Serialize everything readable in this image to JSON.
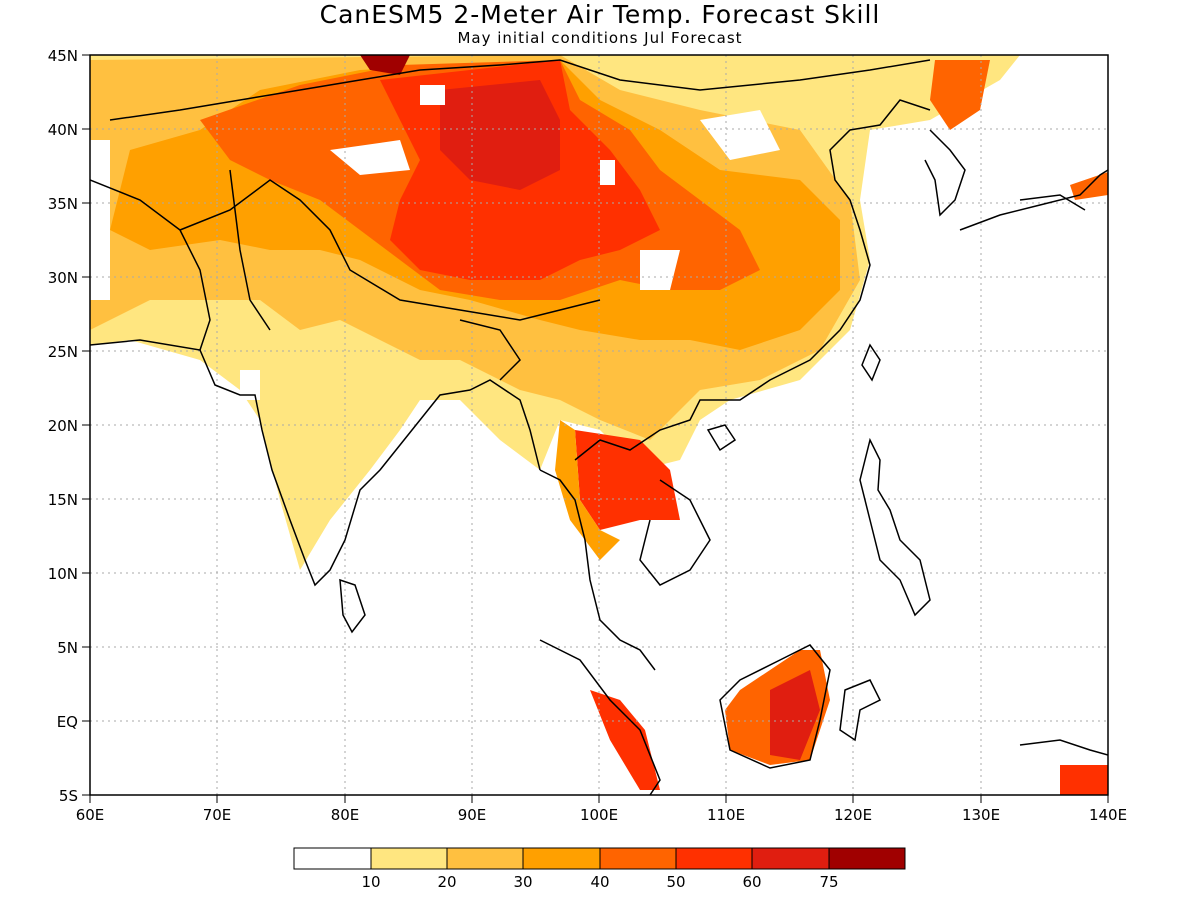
{
  "title": "CanESM5 2-Meter Air Temp. Forecast Skill",
  "subtitle": "May initial conditions  Jul Forecast",
  "map": {
    "region": "South and East Asia",
    "lon_range": [
      60,
      140
    ],
    "lat_range": [
      -5,
      45
    ],
    "lon_ticks": [
      "60E",
      "70E",
      "80E",
      "90E",
      "100E",
      "110E",
      "120E",
      "130E",
      "140E"
    ],
    "lat_ticks": [
      "45N",
      "40N",
      "35N",
      "30N",
      "25N",
      "20N",
      "15N",
      "10N",
      "5N",
      "EQ",
      "5S"
    ],
    "gridlines": true,
    "colors": {
      "land_outline": "#000000",
      "gridline": "#aaaaaa"
    }
  },
  "colorbar": {
    "labels": [
      "10",
      "20",
      "30",
      "40",
      "50",
      "60",
      "75"
    ],
    "colors": [
      "#ffffff",
      "#ffe680",
      "#ffc040",
      "#ffa000",
      "#ff6400",
      "#ff3000",
      "#e01e10",
      "#a00000"
    ]
  }
}
